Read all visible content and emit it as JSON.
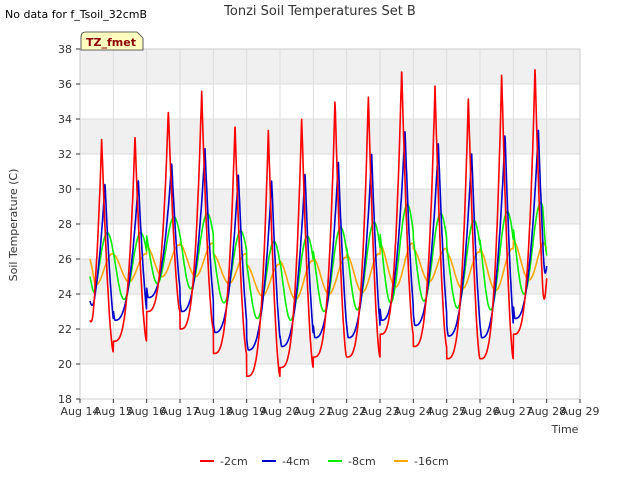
{
  "nodata_note": "No data for f_Tsoil_32cmB",
  "badge": "TZ_fmet",
  "chart_data": {
    "type": "line",
    "title": "Tonzi Soil Temperatures Set B",
    "xlabel": "Time",
    "ylabel": "Soil Temperature (C)",
    "xlim": [
      14,
      29
    ],
    "ylim": [
      18,
      38
    ],
    "grid": true,
    "legend_position": "bottom",
    "x_tick_values": [
      14,
      15,
      16,
      17,
      18,
      19,
      20,
      21,
      22,
      23,
      24,
      25,
      26,
      27,
      28,
      29
    ],
    "x_ticks": [
      "Aug 14",
      "Aug 15",
      "Aug 16",
      "Aug 17",
      "Aug 18",
      "Aug 19",
      "Aug 20",
      "Aug 21",
      "Aug 22",
      "Aug 23",
      "Aug 24",
      "Aug 25",
      "Aug 26",
      "Aug 27",
      "Aug 28",
      "Aug 29"
    ],
    "y_ticks": [
      18,
      20,
      22,
      24,
      26,
      28,
      30,
      32,
      34,
      36,
      38
    ],
    "x_start": 14.3,
    "x_end": 28.0,
    "series": [
      {
        "name": "-2cm",
        "color": "#ff0000",
        "mins": [
          20.7,
          21.3,
          23.0,
          22.0,
          20.6,
          19.3,
          19.8,
          20.4,
          20.4,
          21.7,
          21.0,
          20.3,
          20.3,
          21.7
        ],
        "maxs": [
          32.9,
          33.0,
          34.5,
          35.6,
          33.7,
          33.4,
          34.1,
          35.1,
          35.3,
          36.9,
          35.9,
          35.3,
          36.6,
          36.9
        ],
        "start": 22.5,
        "end": 24.9
      },
      {
        "name": "-4cm",
        "color": "#0000cc",
        "mins": [
          22.0,
          22.5,
          23.8,
          23.0,
          21.8,
          20.8,
          21.0,
          21.5,
          21.5,
          22.5,
          22.2,
          21.6,
          21.5,
          22.6
        ],
        "maxs": [
          30.3,
          30.5,
          31.5,
          32.3,
          30.9,
          30.5,
          30.9,
          31.6,
          32.0,
          33.4,
          32.6,
          32.1,
          33.1,
          33.4
        ],
        "start": 23.6,
        "end": 25.6
      },
      {
        "name": "-8cm",
        "color": "#00ee00",
        "mins": [
          23.5,
          23.7,
          24.6,
          24.3,
          23.5,
          22.6,
          22.5,
          23.0,
          23.1,
          23.5,
          23.6,
          23.2,
          23.1,
          24.0
        ],
        "maxs": [
          27.5,
          27.5,
          28.4,
          28.6,
          27.6,
          27.0,
          27.3,
          27.8,
          28.1,
          29.1,
          28.6,
          28.2,
          28.7,
          29.2
        ],
        "start": 25.0,
        "end": 26.2
      },
      {
        "name": "-16cm",
        "color": "#ffa500",
        "mins": [
          24.5,
          24.7,
          25.0,
          25.0,
          24.6,
          23.9,
          23.7,
          24.0,
          24.1,
          24.4,
          24.7,
          24.3,
          24.2,
          24.8
        ],
        "maxs": [
          26.3,
          26.3,
          26.8,
          26.9,
          26.3,
          25.7,
          25.9,
          26.1,
          26.3,
          26.9,
          26.6,
          26.4,
          26.6,
          27.1
        ],
        "start": 26.0,
        "end": 26.6
      }
    ]
  }
}
